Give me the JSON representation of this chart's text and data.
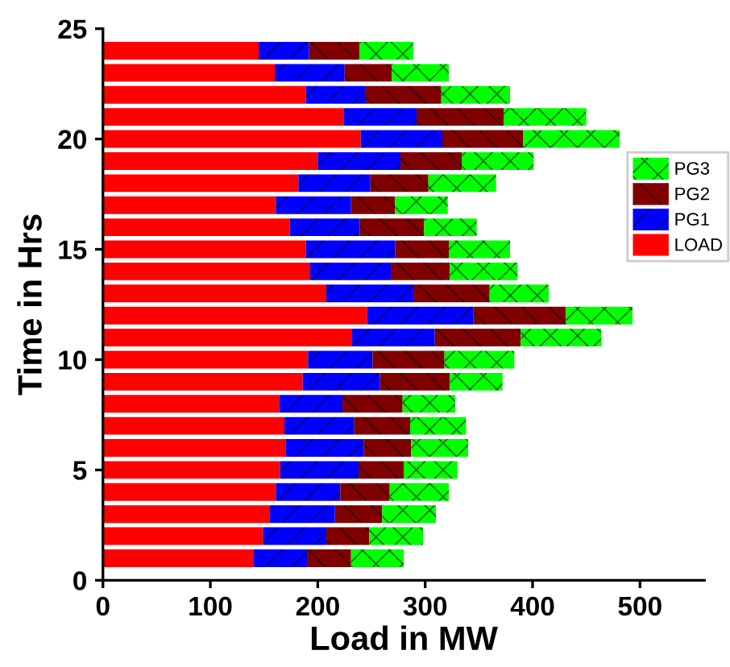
{
  "chart_data": {
    "type": "bar",
    "orientation": "horizontal",
    "stacked": true,
    "xlabel": "Load in MW",
    "ylabel": "Time in Hrs",
    "x": [
      1,
      2,
      3,
      4,
      5,
      6,
      7,
      8,
      9,
      10,
      11,
      12,
      13,
      14,
      15,
      16,
      17,
      18,
      19,
      20,
      21,
      22,
      23,
      24
    ],
    "series": [
      {
        "name": "LOAD",
        "color": "#ff0000",
        "values": [
          140,
          149,
          155,
          161,
          165,
          170,
          169,
          164,
          186,
          191,
          232,
          246,
          208,
          193,
          189,
          174,
          161,
          182,
          200,
          240,
          224,
          189,
          160,
          145
        ]
      },
      {
        "name": "PG1",
        "color": "#0000ff",
        "values": [
          50,
          59,
          61,
          60,
          73,
          73,
          65,
          59,
          72,
          60,
          77,
          99,
          81,
          75,
          83,
          65,
          70,
          67,
          77,
          76,
          68,
          55,
          65,
          47
        ]
      },
      {
        "name": "PG2",
        "color": "#800000",
        "values": [
          41,
          40,
          44,
          46,
          42,
          44,
          52,
          56,
          65,
          67,
          80,
          86,
          71,
          55,
          50,
          60,
          41,
          54,
          57,
          75,
          81,
          71,
          44,
          47
        ]
      },
      {
        "name": "PG3",
        "color": "#00ff00",
        "values": [
          49,
          50,
          50,
          55,
          50,
          53,
          52,
          49,
          49,
          65,
          75,
          62,
          55,
          63,
          57,
          49,
          49,
          63,
          67,
          90,
          77,
          64,
          53,
          50
        ]
      }
    ],
    "xlim": [
      0,
      560
    ],
    "xticks": [
      0,
      100,
      200,
      300,
      400,
      500
    ],
    "ylim": [
      0,
      25
    ],
    "yticks": [
      0,
      5,
      10,
      15,
      20,
      25
    ],
    "legend": "right",
    "grid": false
  }
}
